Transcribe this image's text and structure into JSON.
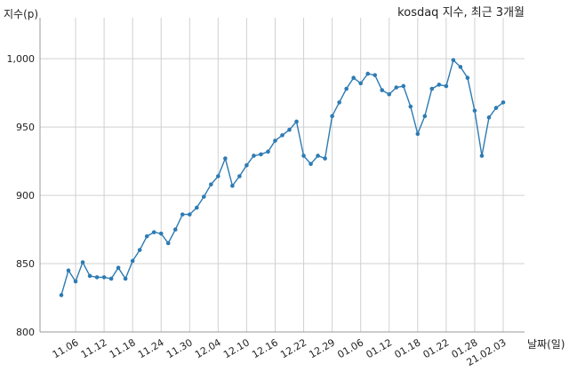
{
  "chart_data": {
    "type": "line",
    "title": "kosdaq 지수, 최근 3개월",
    "xlabel": "날짜(일)",
    "ylabel": "지수(p)",
    "ylim": [
      800,
      1030
    ],
    "yticks": [
      800,
      850,
      900,
      950,
      "1,000"
    ],
    "ytick_values": [
      800,
      850,
      900,
      950,
      1000
    ],
    "xticks": [
      "11.06",
      "11.12",
      "11.18",
      "11.24",
      "11.30",
      "12.04",
      "12.10",
      "12.16",
      "12.22",
      "12.29",
      "01.06",
      "01.12",
      "01.18",
      "01.22",
      "01.28",
      "21.02.03"
    ],
    "grid": true,
    "legend": "none",
    "line_color": "#2d7bb3",
    "series": [
      {
        "values": [
          827,
          845,
          837,
          851,
          841,
          840,
          840,
          839,
          847,
          839,
          852,
          860,
          870,
          873,
          872,
          865,
          875,
          886,
          886,
          891,
          899,
          908,
          914,
          927,
          907,
          914,
          922,
          929,
          930,
          932,
          940,
          944,
          948,
          954,
          929,
          923,
          929,
          927,
          958,
          968,
          978,
          986,
          982,
          989,
          988,
          977,
          974,
          979,
          980,
          965,
          945,
          958,
          978,
          981,
          980,
          999,
          994,
          986,
          962,
          929,
          957,
          964,
          968
        ]
      }
    ]
  }
}
